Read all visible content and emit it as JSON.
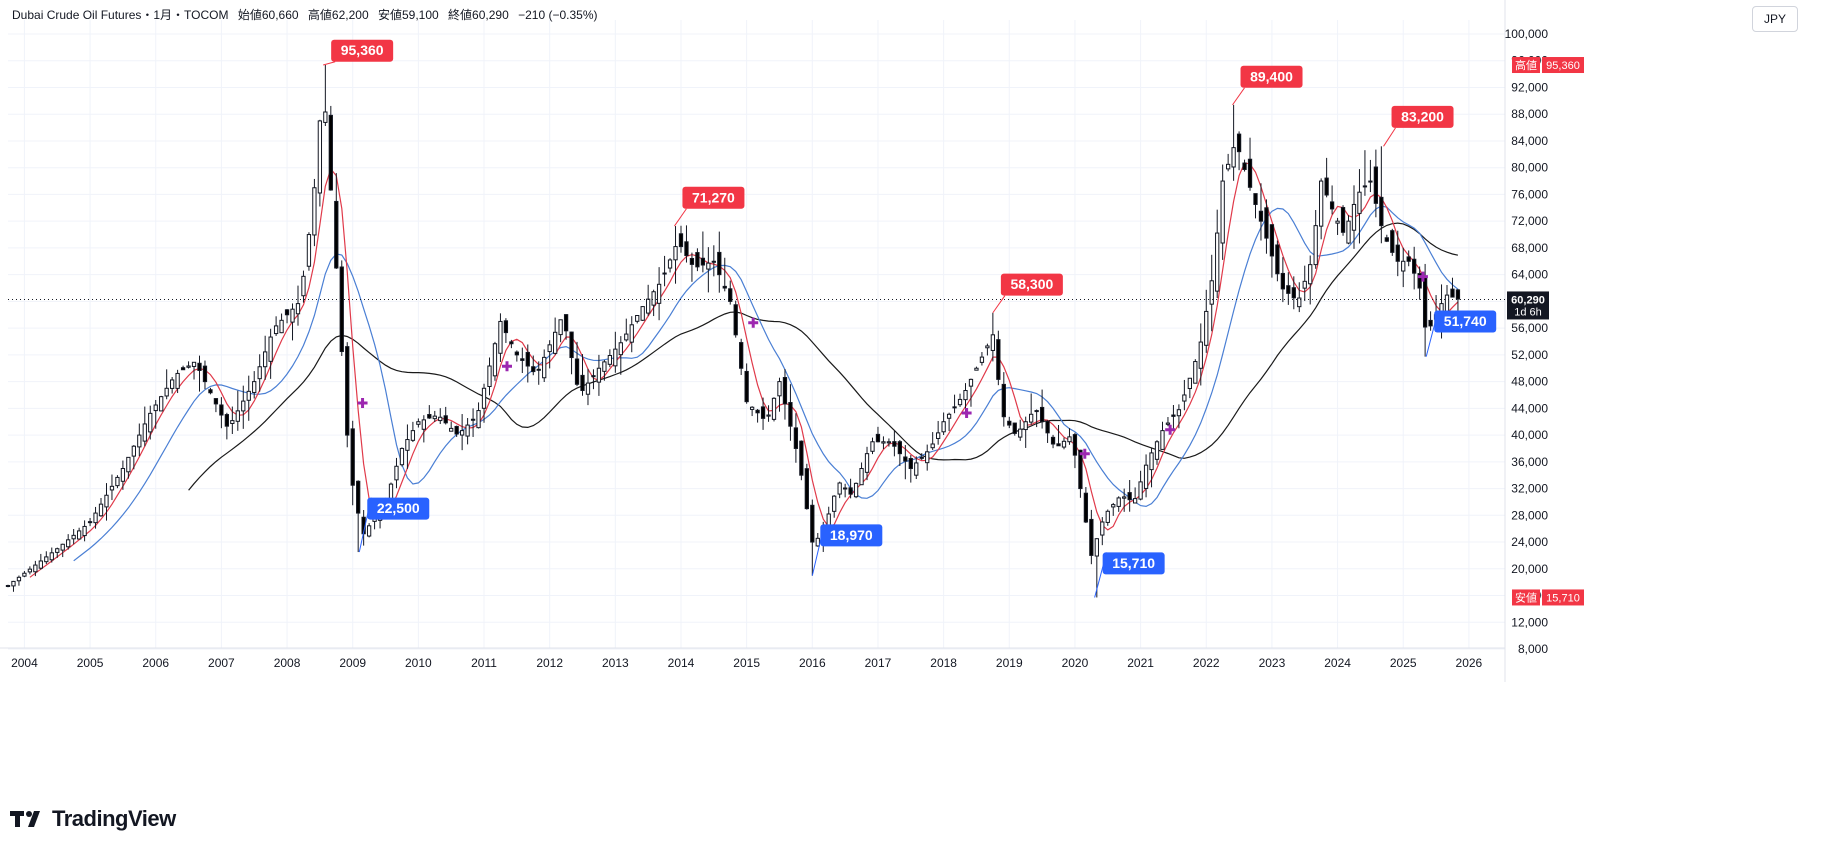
{
  "header": {
    "symbol": "Dubai Crude Oil Futures・1月・TOCOM",
    "open": "始値60,660",
    "high": "高値62,200",
    "low": "安値59,100",
    "close": "終値60,290",
    "change": "−210 (−0.35%)"
  },
  "currency": "JPY",
  "brand": {
    "name": "TradingView"
  },
  "colors": {
    "up": "#131722",
    "down": "#000000",
    "ma_short": "#e03a4a",
    "ma_mid": "#4a7fd4",
    "ma_long": "#1a1a1a",
    "high_label": "#f23645",
    "low_label": "#2962ff",
    "cross_marker": "#9c27b0"
  },
  "chart_data": {
    "type": "candlestick",
    "x_unit": "year",
    "x_ticks": [
      "2004",
      "2005",
      "2006",
      "2007",
      "2008",
      "2009",
      "2010",
      "2011",
      "2012",
      "2013",
      "2014",
      "2015",
      "2016",
      "2017",
      "2018",
      "2019",
      "2020",
      "2021",
      "2022",
      "2023",
      "2024",
      "2025",
      "2026"
    ],
    "y_ticks": [
      "8,000",
      "12,000",
      "16,000",
      "20,000",
      "24,000",
      "28,000",
      "32,000",
      "36,000",
      "40,000",
      "44,000",
      "48,000",
      "52,000",
      "56,000",
      "60,000",
      "64,000",
      "68,000",
      "72,000",
      "76,000",
      "80,000",
      "84,000",
      "88,000",
      "92,000",
      "96,000",
      "100,000"
    ],
    "ylim": [
      8000,
      100000
    ],
    "last_price": {
      "value": 60290,
      "label": "60,290",
      "countdown": "1d 6h"
    },
    "axis_high": {
      "label": "高値",
      "value": "95,360"
    },
    "axis_low": {
      "label": "安値",
      "value": "15,710"
    },
    "anchors": [
      [
        2003.75,
        17500
      ],
      [
        2004.5,
        23000
      ],
      [
        2005.0,
        27000
      ],
      [
        2005.5,
        35000
      ],
      [
        2005.9,
        43000
      ],
      [
        2006.3,
        49000
      ],
      [
        2006.6,
        51000
      ],
      [
        2006.9,
        45000
      ],
      [
        2007.1,
        41000
      ],
      [
        2007.5,
        48000
      ],
      [
        2007.8,
        56000
      ],
      [
        2008.2,
        60000
      ],
      [
        2008.4,
        75000
      ],
      [
        2008.55,
        93000
      ],
      [
        2008.75,
        65000
      ],
      [
        2008.95,
        35000
      ],
      [
        2009.15,
        25000
      ],
      [
        2009.5,
        30000
      ],
      [
        2009.75,
        38000
      ],
      [
        2010.0,
        42000
      ],
      [
        2010.3,
        43000
      ],
      [
        2010.6,
        40000
      ],
      [
        2010.9,
        43000
      ],
      [
        2011.25,
        57000
      ],
      [
        2011.5,
        52000
      ],
      [
        2011.8,
        49000
      ],
      [
        2012.2,
        58000
      ],
      [
        2012.45,
        46000
      ],
      [
        2012.75,
        50000
      ],
      [
        2013.1,
        54000
      ],
      [
        2013.4,
        59000
      ],
      [
        2013.7,
        63000
      ],
      [
        2013.95,
        69000
      ],
      [
        2014.2,
        65000
      ],
      [
        2014.5,
        66000
      ],
      [
        2014.75,
        60000
      ],
      [
        2015.0,
        45000
      ],
      [
        2015.3,
        42000
      ],
      [
        2015.5,
        48000
      ],
      [
        2015.8,
        36000
      ],
      [
        2016.0,
        24000
      ],
      [
        2016.15,
        25000
      ],
      [
        2016.4,
        33000
      ],
      [
        2016.6,
        31000
      ],
      [
        2016.9,
        39000
      ],
      [
        2017.2,
        39000
      ],
      [
        2017.5,
        35000
      ],
      [
        2017.8,
        38000
      ],
      [
        2018.0,
        42000
      ],
      [
        2018.3,
        46000
      ],
      [
        2018.6,
        52000
      ],
      [
        2018.75,
        55000
      ],
      [
        2018.9,
        43000
      ],
      [
        2019.1,
        40000
      ],
      [
        2019.4,
        44000
      ],
      [
        2019.7,
        38000
      ],
      [
        2019.95,
        40000
      ],
      [
        2020.1,
        31000
      ],
      [
        2020.25,
        22000
      ],
      [
        2020.45,
        28000
      ],
      [
        2020.7,
        31000
      ],
      [
        2020.9,
        30000
      ],
      [
        2021.1,
        36000
      ],
      [
        2021.35,
        41000
      ],
      [
        2021.6,
        44000
      ],
      [
        2021.9,
        53000
      ],
      [
        2022.1,
        64000
      ],
      [
        2022.25,
        78000
      ],
      [
        2022.45,
        84000
      ],
      [
        2022.7,
        76000
      ],
      [
        2022.9,
        70000
      ],
      [
        2023.15,
        62000
      ],
      [
        2023.4,
        60000
      ],
      [
        2023.6,
        66000
      ],
      [
        2023.75,
        78000
      ],
      [
        2023.95,
        73000
      ],
      [
        2024.1,
        70000
      ],
      [
        2024.3,
        76000
      ],
      [
        2024.5,
        78000
      ],
      [
        2024.7,
        70000
      ],
      [
        2024.9,
        66000
      ],
      [
        2025.1,
        66000
      ],
      [
        2025.25,
        62000
      ],
      [
        2025.35,
        55000
      ],
      [
        2025.5,
        58000
      ],
      [
        2025.65,
        61000
      ],
      [
        2025.85,
        60290
      ]
    ],
    "price_labels": [
      {
        "kind": "high",
        "value": "95,360",
        "x": 2008.55,
        "y": 95360,
        "label_y": 97500
      },
      {
        "kind": "low",
        "value": "22,500",
        "x": 2009.1,
        "y": 22500,
        "label_y": 29000
      },
      {
        "kind": "high",
        "value": "71,270",
        "x": 2013.9,
        "y": 71270,
        "label_y": 75500
      },
      {
        "kind": "low",
        "value": "18,970",
        "x": 2016.0,
        "y": 18970,
        "label_y": 25000
      },
      {
        "kind": "high",
        "value": "58,300",
        "x": 2018.75,
        "y": 58300,
        "label_y": 62500
      },
      {
        "kind": "low",
        "value": "15,710",
        "x": 2020.3,
        "y": 15710,
        "label_y": 20800
      },
      {
        "kind": "high",
        "value": "89,400",
        "x": 2022.4,
        "y": 89400,
        "label_y": 93600
      },
      {
        "kind": "high",
        "value": "83,200",
        "x": 2024.7,
        "y": 83200,
        "label_y": 87600
      },
      {
        "kind": "low",
        "value": "51,740",
        "x": 2025.35,
        "y": 51740,
        "label_y": 57000
      }
    ],
    "cross_markers": [
      [
        2009.15,
        44800
      ],
      [
        2011.35,
        50300
      ],
      [
        2015.1,
        56800
      ],
      [
        2018.35,
        43300
      ],
      [
        2020.15,
        37200
      ],
      [
        2021.45,
        40800
      ],
      [
        2025.3,
        63700
      ]
    ]
  }
}
